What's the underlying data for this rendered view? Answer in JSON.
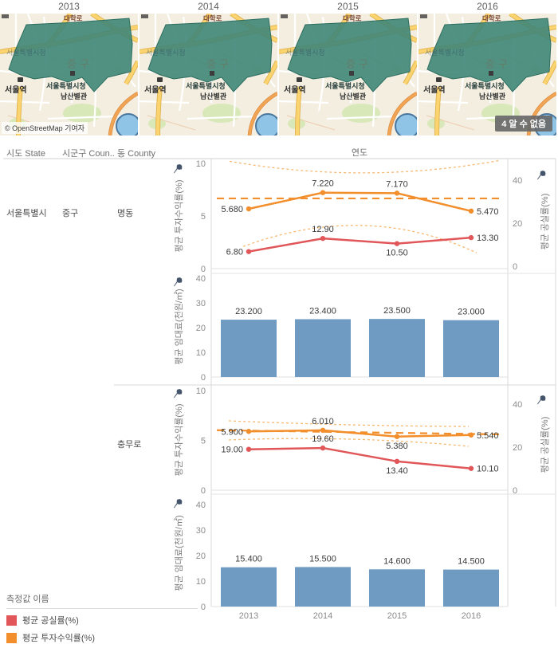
{
  "maps": {
    "years": [
      "2013",
      "2014",
      "2015",
      "2016"
    ],
    "attribution": "© OpenStreetMap 기여자",
    "badge": "4 알 수 없음",
    "labels": {
      "road_top": "대학로",
      "city_hall_ghost": "서울특별시청",
      "district_watermark": "중구",
      "station": "서울역",
      "city_hall": "서울특별시청",
      "annex": "남산별관"
    },
    "colors": {
      "land": "#f3eee0",
      "major_road": "#fbd46f",
      "major_road_casing": "#e0b24f",
      "orange_road": "#f2a455",
      "minor_road": "#ffffff",
      "park": "#d8e8b8",
      "water": "#8fc4e6",
      "region_fill": "#3f8678",
      "region_stroke": "#2d6e61"
    }
  },
  "table": {
    "headers": {
      "state": "시도 State",
      "county": "시군구 Coun..",
      "dong": "동 County"
    },
    "x_axis_title": "연도",
    "row": {
      "state": "서울특별시",
      "county": "중구",
      "groups": [
        "명동",
        "충무로"
      ]
    }
  },
  "legend": {
    "title": "측정값 이름",
    "items": [
      {
        "label": "평균 공실률(%)",
        "color": "#e15759"
      },
      {
        "label": "평균 투자수익률(%)",
        "color": "#f28e2b"
      }
    ]
  },
  "colors": {
    "orange": "#f28e2b",
    "red": "#e15759",
    "bar": "#6f9bc3",
    "band": "#f6b971",
    "axis_text": "#8c8c8c",
    "label_text": "#3a3a3a",
    "axis_title": "#7c7c7c",
    "pin": "#44546a",
    "border": "#d9d9d9"
  },
  "chart_data": [
    {
      "type": "line",
      "row": "명동",
      "x": [
        "2013",
        "2014",
        "2015",
        "2016"
      ],
      "x_title": "연도",
      "left_axis": {
        "title": "평균 투자수익률(%)",
        "ticks": [
          0,
          5,
          10
        ],
        "range": [
          0,
          10
        ]
      },
      "right_axis": {
        "title": "평균 공실률(%)",
        "ticks": [
          0,
          20,
          40
        ],
        "range": [
          0,
          42
        ]
      },
      "series": [
        {
          "name": "평균 투자수익률(%)",
          "axis": "left",
          "color": "#f28e2b",
          "values": [
            5.68,
            7.22,
            7.17,
            5.47
          ],
          "labels": [
            "5.680",
            "7.220",
            "7.170",
            "5.470"
          ],
          "label_pos": [
            "left",
            "above",
            "above",
            "right"
          ]
        },
        {
          "name": "평균 공실률(%)",
          "axis": "right",
          "color": "#e15759",
          "values": [
            6.8,
            12.9,
            10.5,
            13.3
          ],
          "labels": [
            "6.80",
            "12.90",
            "10.50",
            "13.30"
          ],
          "label_pos": [
            "left",
            "above",
            "below",
            "right"
          ]
        }
      ],
      "trend": {
        "color": "#f28e2b",
        "axis": "left",
        "line": {
          "start": 6.67,
          "end": 6.67
        },
        "ci_upper": [
          10.2,
          9.1,
          10.3
        ],
        "ci_lower": [
          2.1,
          4.1,
          1.5
        ]
      }
    },
    {
      "type": "bar",
      "row": "명동",
      "x": [
        "2013",
        "2014",
        "2015",
        "2016"
      ],
      "axis": {
        "title": "평균 임대료(천원/㎡)",
        "ticks": [
          0,
          10,
          20,
          30,
          40
        ],
        "range": [
          0,
          40
        ]
      },
      "color": "#6f9bc3",
      "values": [
        23.2,
        23.4,
        23.5,
        23.0
      ],
      "labels": [
        "23.200",
        "23.400",
        "23.500",
        "23.000"
      ]
    },
    {
      "type": "line",
      "row": "충무로",
      "x": [
        "2013",
        "2014",
        "2015",
        "2016"
      ],
      "x_title": "연도",
      "left_axis": {
        "title": "평균 투자수익률(%)",
        "ticks": [
          0,
          5,
          10
        ],
        "range": [
          0,
          10
        ]
      },
      "right_axis": {
        "title": "평균 공실률(%)",
        "ticks": [
          0,
          20,
          40
        ],
        "range": [
          0,
          42
        ]
      },
      "series": [
        {
          "name": "평균 투자수익률(%)",
          "axis": "left",
          "color": "#f28e2b",
          "values": [
            5.9,
            6.01,
            5.38,
            5.54
          ],
          "labels": [
            "5.900",
            "6.010",
            "5.380",
            "5.540"
          ],
          "label_pos": [
            "left",
            "above",
            "below",
            "right"
          ]
        },
        {
          "name": "평균 공실률(%)",
          "axis": "right",
          "color": "#e15759",
          "values": [
            19.0,
            19.6,
            13.4,
            10.1
          ],
          "labels": [
            "19.00",
            "19.60",
            "13.40",
            "10.10"
          ],
          "label_pos": [
            "left",
            "above",
            "below",
            "right"
          ]
        }
      ],
      "trend": {
        "color": "#f28e2b",
        "axis": "left",
        "line": {
          "start": 6.02,
          "end": 5.6
        },
        "ci_upper": [
          6.96,
          6.56,
          6.4
        ],
        "ci_lower": [
          5.04,
          5.12,
          4.4
        ]
      }
    },
    {
      "type": "bar",
      "row": "충무로",
      "x": [
        "2013",
        "2014",
        "2015",
        "2016"
      ],
      "axis": {
        "title": "평균 임대료(천원/㎡)",
        "ticks": [
          0,
          10,
          20,
          30,
          40
        ],
        "range": [
          0,
          40
        ]
      },
      "color": "#6f9bc3",
      "values": [
        15.4,
        15.5,
        14.6,
        14.5
      ],
      "labels": [
        "15.400",
        "15.500",
        "14.600",
        "14.500"
      ],
      "show_x_labels": true
    }
  ]
}
